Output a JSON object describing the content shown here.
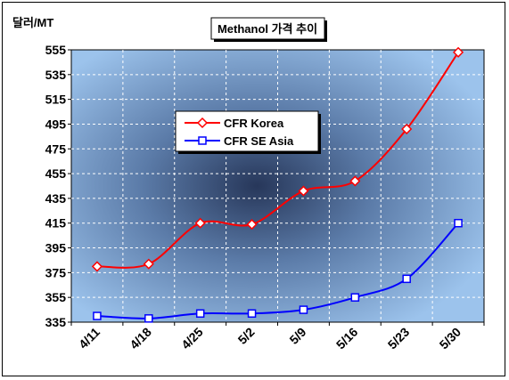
{
  "chart_data": {
    "type": "line",
    "title": "Methanol 가격 추이",
    "ylabel": "달러/MT",
    "xlabel": "",
    "categories": [
      "4/11",
      "4/18",
      "4/25",
      "5/2",
      "5/9",
      "5/16",
      "5/23",
      "5/30"
    ],
    "ylim": [
      335,
      555
    ],
    "yticks": [
      335,
      355,
      375,
      395,
      415,
      435,
      455,
      475,
      495,
      515,
      535,
      555
    ],
    "grid": true,
    "legend_position": "upper-left-center",
    "series": [
      {
        "name": "CFR Korea",
        "color": "#ff0000",
        "marker": "diamond",
        "values": [
          380,
          382,
          415,
          414,
          441,
          449,
          491,
          553
        ]
      },
      {
        "name": "CFR SE Asia",
        "color": "#0000ff",
        "marker": "square",
        "values": [
          340,
          338,
          342,
          342,
          345,
          355,
          370,
          415
        ]
      }
    ]
  }
}
